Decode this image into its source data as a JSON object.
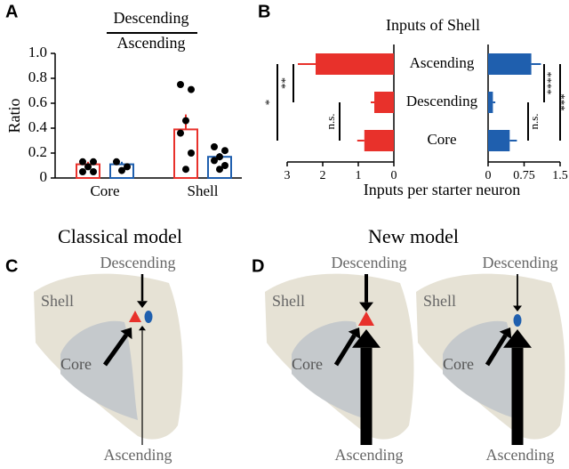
{
  "chart_data": [
    {
      "type": "bar",
      "panel": "A",
      "title_numerator": "Descending",
      "title_denominator": "Ascending",
      "ylabel": "Ratio",
      "categories": [
        "Core",
        "Shell"
      ],
      "ylim": [
        0,
        1
      ],
      "yticks": [
        0,
        0.2,
        0.4,
        0.6,
        0.8,
        {
          "value": 1,
          "label": "1.0"
        }
      ],
      "series": [
        {
          "color": "#e8312b",
          "values": [
            0.11,
            0.39
          ],
          "errors": [
            0.02,
            0.12
          ],
          "points": [
            [
              0.13,
              0.13,
              0.09,
              0.05,
              0.05
            ],
            [
              0.75,
              0.71,
              0.46,
              0.36,
              0.2,
              0.07
            ]
          ]
        },
        {
          "color": "#1f5fae",
          "values": [
            0.11,
            0.17
          ],
          "errors": [
            0.02,
            0.03
          ],
          "points": [
            [
              0.13,
              0.09,
              0.06
            ],
            [
              0.25,
              0.22,
              0.17,
              0.14,
              0.1,
              0.07
            ]
          ]
        }
      ]
    },
    {
      "type": "barh",
      "panel": "B",
      "title": "Inputs of Shell",
      "xlabel": "Inputs per starter neuron",
      "categories": [
        "Ascending",
        "Descending",
        "Core"
      ],
      "xlim": [
        3,
        0
      ],
      "xticks": [
        3,
        2,
        1,
        0
      ],
      "series": [
        {
          "color": "#e8312b",
          "values": [
            2.2,
            0.55,
            0.83
          ],
          "errors": [
            0.5,
            0.1,
            0.2
          ]
        }
      ],
      "annotations": [
        "**",
        "*",
        "n.s."
      ]
    },
    {
      "type": "barh",
      "xlim": [
        0,
        1.5
      ],
      "xticks": [
        0,
        0.75,
        1.5
      ],
      "series": [
        {
          "color": "#1f5fae",
          "values": [
            0.9,
            0.1,
            0.45
          ],
          "errors": [
            0.2,
            0.05,
            0.15
          ]
        }
      ],
      "annotations": [
        "****",
        "***",
        "n.s."
      ]
    }
  ],
  "diagrams": [
    {
      "panel": "C",
      "title": "Classical model",
      "models": [
        {
          "shell": "Shell",
          "core": "Core",
          "descending": "Descending",
          "ascending": "Ascending"
        }
      ]
    },
    {
      "panel": "D",
      "title": "New model",
      "models": [
        {
          "shell": "Shell",
          "core": "Core",
          "descending": "Descending",
          "ascending": "Ascending"
        },
        {
          "shell": "Shell",
          "core": "Core",
          "descending": "Descending",
          "ascending": "Ascending"
        }
      ]
    }
  ]
}
